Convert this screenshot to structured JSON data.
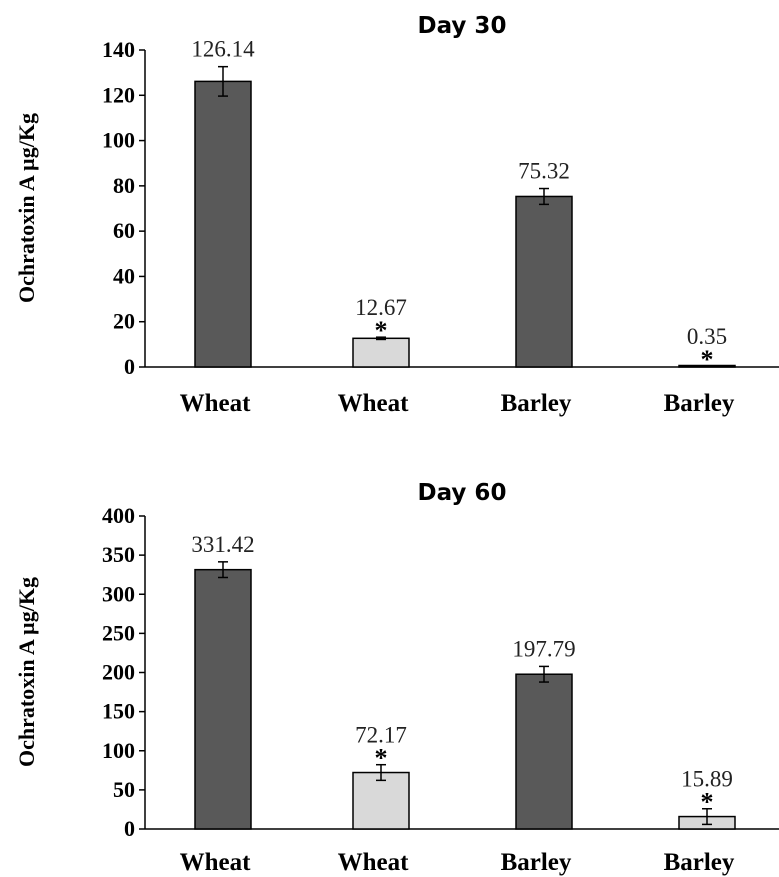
{
  "chart_data": [
    {
      "type": "bar",
      "title": "Day 30",
      "ylabel": "Ochratoxin A µg/Kg",
      "ylim": [
        0,
        140
      ],
      "yticks": [
        "0",
        "20",
        "40",
        "60",
        "80",
        "100",
        "120",
        "140"
      ],
      "categories": [
        "Wheat",
        "Wheat",
        "Barley",
        "Barley"
      ],
      "values": [
        126.14,
        12.67,
        75.32,
        0.35
      ],
      "value_labels": [
        "126.14",
        "12.67",
        "75.32",
        "0.35"
      ],
      "errors": [
        6.5,
        0.5,
        3.5,
        0.2
      ],
      "significance": [
        "",
        "*",
        "",
        "*"
      ],
      "bar_colors": [
        "#595959",
        "#d9d9d9",
        "#595959",
        "#d9d9d9"
      ],
      "grid": false
    },
    {
      "type": "bar",
      "title": "Day 60",
      "ylabel": "Ochratoxin A µg/Kg",
      "ylim": [
        0,
        400
      ],
      "yticks": [
        "0",
        "50",
        "100",
        "150",
        "200",
        "250",
        "300",
        "350",
        "400"
      ],
      "categories": [
        "Wheat",
        "Wheat",
        "Barley",
        "Barley"
      ],
      "values": [
        331.42,
        72.17,
        197.79,
        15.89
      ],
      "value_labels": [
        "331.42",
        "72.17",
        "197.79",
        "15.89"
      ],
      "errors": [
        10,
        10,
        10,
        10
      ],
      "significance": [
        "",
        "*",
        "",
        "*"
      ],
      "bar_colors": [
        "#595959",
        "#d9d9d9",
        "#595959",
        "#d9d9d9"
      ],
      "grid": false
    }
  ]
}
